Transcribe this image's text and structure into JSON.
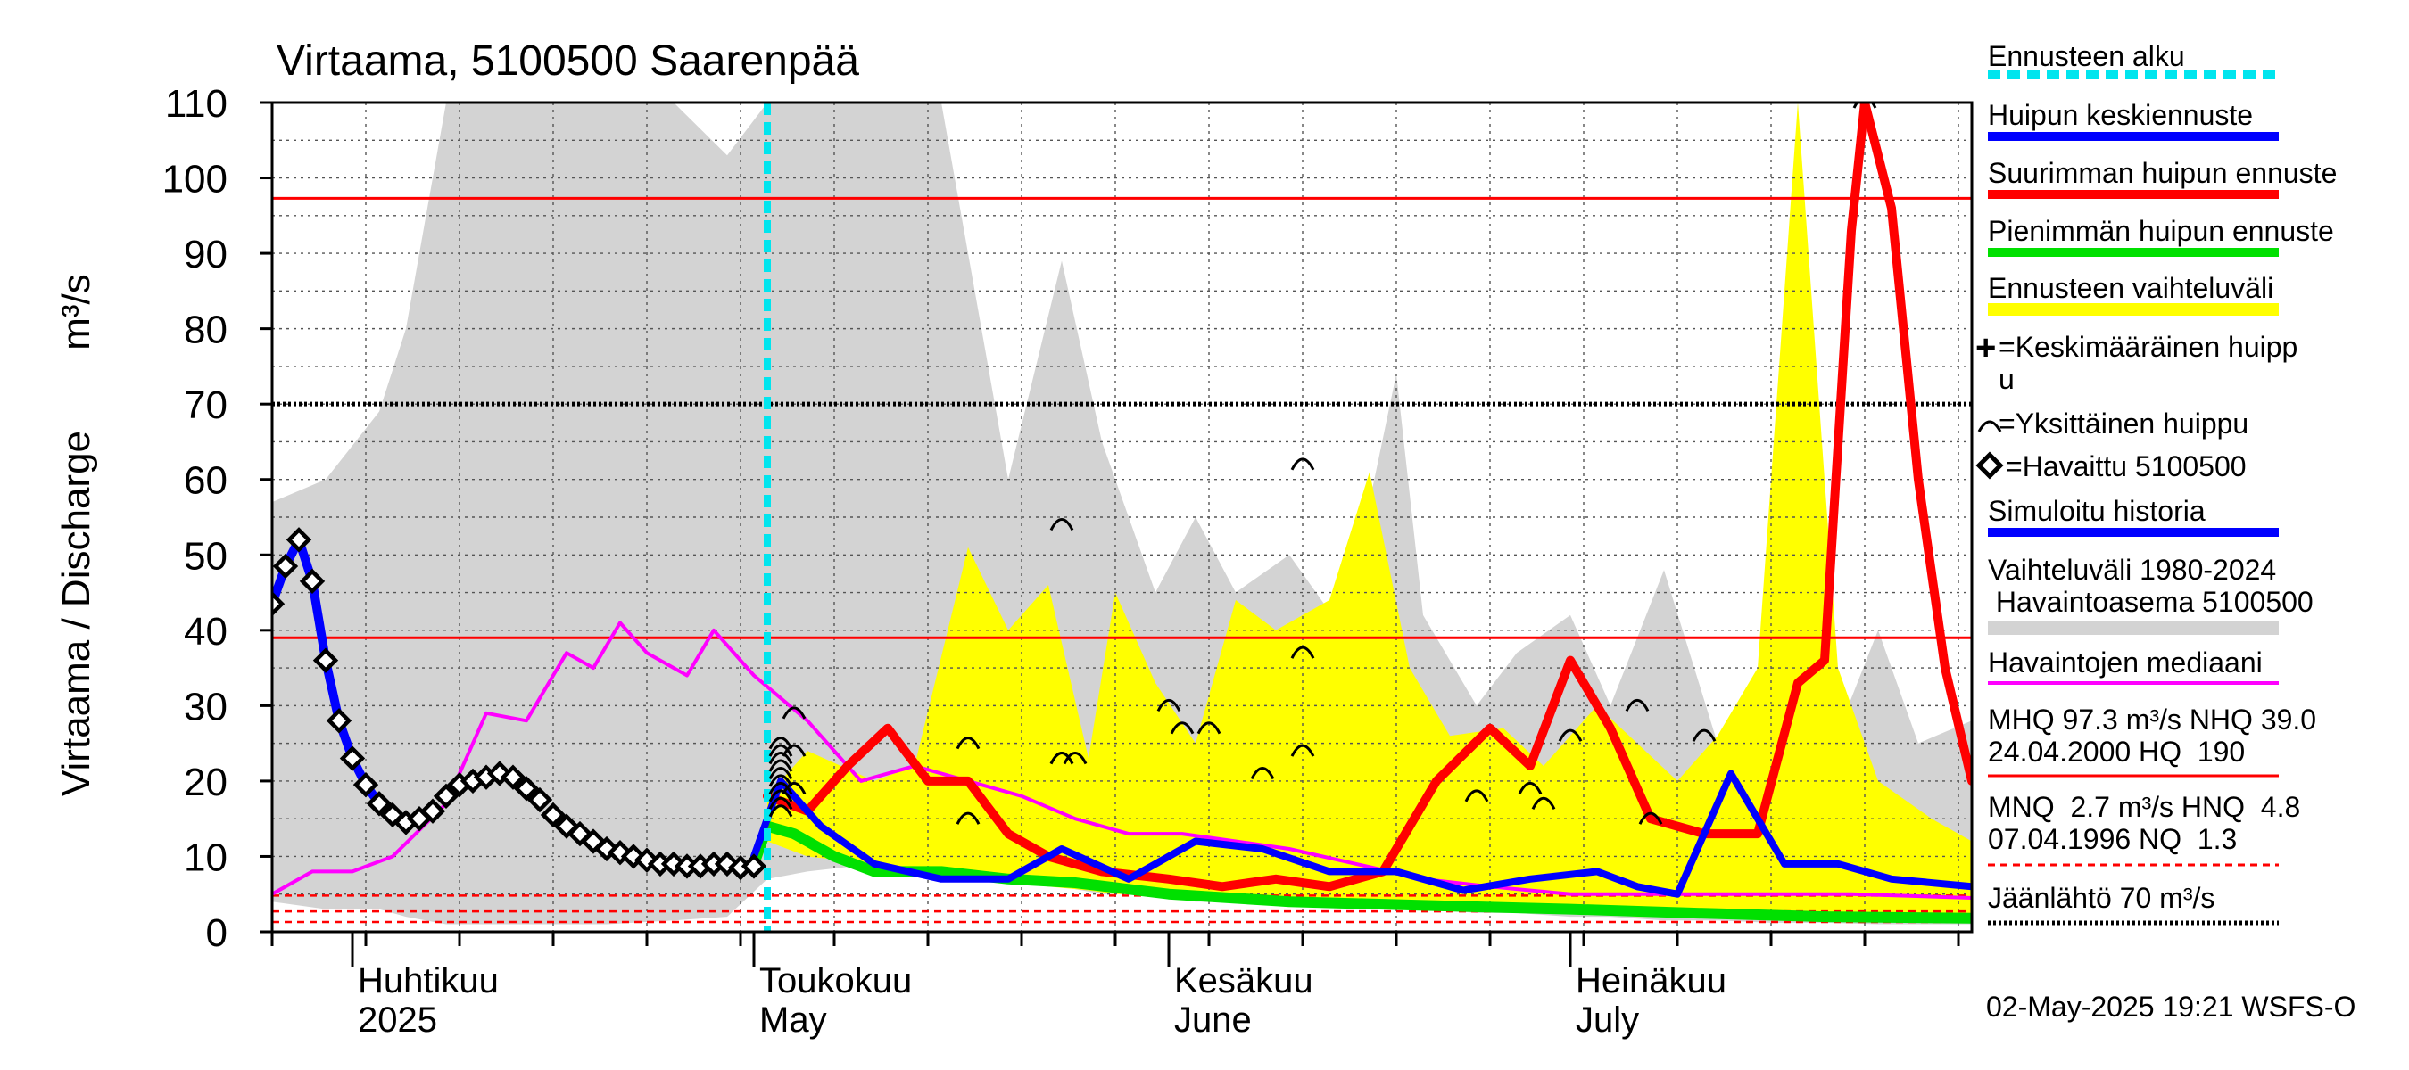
{
  "chart_data": {
    "type": "area",
    "title": "Virtaama, 5100500 Saarenpää",
    "ylabel": "Virtaama / Discharge",
    "yunit": "m³/s",
    "ylim": [
      0,
      110
    ],
    "yticks": [
      0,
      10,
      20,
      30,
      40,
      50,
      60,
      70,
      80,
      90,
      100,
      110
    ],
    "xlim": [
      "2025-03-26",
      "2025-07-31"
    ],
    "month_labels": [
      {
        "fi": "Huhtikuu",
        "en": "2025",
        "date": "2025-04-01"
      },
      {
        "fi": "Toukokuu",
        "en": "May",
        "date": "2025-05-01"
      },
      {
        "fi": "Kesäkuu",
        "en": "June",
        "date": "2025-06-01"
      },
      {
        "fi": "Heinäkuu",
        "en": "July",
        "date": "2025-07-01"
      }
    ],
    "forecast_start": "2025-05-02",
    "reference_lines": {
      "MHQ": 97.3,
      "NHQ": 39.0,
      "MNQ": 2.7,
      "HNQ": 4.8,
      "NQ": 1.3,
      "ice_breakup": 70
    },
    "series": [
      {
        "name": "Vaihteluväli 1980-2024 Havaintoasema 5100500",
        "kind": "band",
        "color": "#d3d3d3",
        "x": [
          "2025-03-26",
          "2025-03-30",
          "2025-04-03",
          "2025-04-05",
          "2025-04-08",
          "2025-04-12",
          "2025-04-16",
          "2025-04-20",
          "2025-04-25",
          "2025-04-29",
          "2025-05-02",
          "2025-05-05",
          "2025-05-10",
          "2025-05-15",
          "2025-05-20",
          "2025-05-24",
          "2025-05-27",
          "2025-05-31",
          "2025-06-03",
          "2025-06-06",
          "2025-06-10",
          "2025-06-14",
          "2025-06-18",
          "2025-06-20",
          "2025-06-24",
          "2025-06-27",
          "2025-07-01",
          "2025-07-04",
          "2025-07-08",
          "2025-07-12",
          "2025-07-16",
          "2025-07-20",
          "2025-07-24",
          "2025-07-27",
          "2025-07-31"
        ],
        "upper": [
          57,
          60,
          69,
          80,
          110,
          110,
          110,
          110,
          110,
          103,
          110,
          110,
          110,
          110,
          60,
          89,
          65,
          45,
          55,
          45,
          50,
          40,
          74,
          42,
          30,
          37,
          42,
          30,
          48,
          25,
          36,
          22,
          40,
          25,
          28
        ],
        "lower": [
          4,
          3,
          3,
          2,
          1,
          1,
          1,
          1,
          1.5,
          2,
          7,
          8,
          9,
          8,
          7,
          6,
          5,
          5,
          4,
          4,
          3.5,
          3.5,
          3,
          3,
          2.5,
          2.5,
          2,
          2,
          1.5,
          1.5,
          1.2,
          1.2,
          1,
          1,
          1
        ]
      },
      {
        "name": "Ennusteen vaihteluväli",
        "kind": "band",
        "color": "#ffff00",
        "x": [
          "2025-05-02",
          "2025-05-05",
          "2025-05-10",
          "2025-05-13",
          "2025-05-17",
          "2025-05-20",
          "2025-05-23",
          "2025-05-26",
          "2025-05-28",
          "2025-05-31",
          "2025-06-03",
          "2025-06-06",
          "2025-06-09",
          "2025-06-13",
          "2025-06-16",
          "2025-06-19",
          "2025-06-22",
          "2025-06-26",
          "2025-06-29",
          "2025-07-03",
          "2025-07-06",
          "2025-07-09",
          "2025-07-12",
          "2025-07-15",
          "2025-07-18",
          "2025-07-21",
          "2025-07-24",
          "2025-07-28",
          "2025-07-31"
        ],
        "upper": [
          18,
          24,
          20,
          22,
          51,
          40,
          46,
          23,
          45,
          33,
          25,
          44,
          40,
          44,
          61,
          35,
          26,
          27,
          22,
          30,
          25,
          20,
          26,
          35,
          110,
          35,
          20,
          15,
          12
        ],
        "lower": [
          12,
          10,
          9,
          8,
          7,
          6.5,
          6,
          5.5,
          5,
          5,
          4.5,
          4.5,
          4,
          4,
          3.5,
          3.5,
          3,
          3,
          2.5,
          2.5,
          2,
          2,
          2,
          2,
          2,
          2,
          1.8,
          1.5,
          1.5
        ]
      },
      {
        "name": "Havaintojen mediaani",
        "color": "#ff00ff",
        "x": [
          "2025-03-26",
          "2025-03-29",
          "2025-04-01",
          "2025-04-04",
          "2025-04-08",
          "2025-04-11",
          "2025-04-14",
          "2025-04-17",
          "2025-04-19",
          "2025-04-21",
          "2025-04-23",
          "2025-04-26",
          "2025-04-28",
          "2025-05-01",
          "2025-05-05",
          "2025-05-09",
          "2025-05-13",
          "2025-05-17",
          "2025-05-21",
          "2025-05-25",
          "2025-05-29",
          "2025-06-02",
          "2025-06-06",
          "2025-06-10",
          "2025-06-15",
          "2025-06-20",
          "2025-06-25",
          "2025-07-01",
          "2025-07-08",
          "2025-07-15",
          "2025-07-22",
          "2025-07-31"
        ],
        "y": [
          5,
          8,
          8,
          10,
          17,
          29,
          28,
          37,
          35,
          41,
          37,
          34,
          40,
          34,
          28,
          20,
          22,
          20,
          18,
          15,
          13,
          13,
          12,
          11,
          9,
          7,
          6,
          5,
          5,
          5,
          5,
          4.5
        ]
      },
      {
        "name": "Pienimmän huipun ennuste",
        "color": "#00e000",
        "x": [
          "2025-05-01",
          "2025-05-02",
          "2025-05-04",
          "2025-05-07",
          "2025-05-10",
          "2025-05-15",
          "2025-05-20",
          "2025-05-25",
          "2025-06-01",
          "2025-06-10",
          "2025-06-20",
          "2025-07-01",
          "2025-07-10",
          "2025-07-20",
          "2025-07-31"
        ],
        "y": [
          9,
          14,
          13,
          10,
          8,
          8,
          7,
          6.5,
          5,
          4,
          3.5,
          3,
          2.5,
          2,
          1.8
        ]
      },
      {
        "name": "Suurimman huipun ennuste",
        "color": "#ff0000",
        "x": [
          "2025-05-02",
          "2025-05-05",
          "2025-05-08",
          "2025-05-11",
          "2025-05-14",
          "2025-05-17",
          "2025-05-20",
          "2025-05-23",
          "2025-05-27",
          "2025-06-01",
          "2025-06-05",
          "2025-06-09",
          "2025-06-13",
          "2025-06-17",
          "2025-06-21",
          "2025-06-25",
          "2025-06-28",
          "2025-07-01",
          "2025-07-04",
          "2025-07-07",
          "2025-07-11",
          "2025-07-15",
          "2025-07-18",
          "2025-07-20",
          "2025-07-22",
          "2025-07-23",
          "2025-07-25",
          "2025-07-27",
          "2025-07-29",
          "2025-07-31"
        ],
        "y": [
          18,
          16,
          22,
          27,
          20,
          20,
          13,
          10,
          8,
          7,
          6,
          7,
          6,
          8,
          20,
          27,
          22,
          36,
          27,
          15,
          13,
          13,
          33,
          36,
          93,
          110,
          96,
          60,
          35,
          20
        ]
      },
      {
        "name": "Huipun keskiennuste",
        "color": "#0000ff",
        "x": [
          "2025-05-01",
          "2025-05-03",
          "2025-05-06",
          "2025-05-10",
          "2025-05-15",
          "2025-05-20",
          "2025-05-24",
          "2025-05-29",
          "2025-06-03",
          "2025-06-08",
          "2025-06-13",
          "2025-06-18",
          "2025-06-23",
          "2025-06-28",
          "2025-07-03",
          "2025-07-06",
          "2025-07-09",
          "2025-07-13",
          "2025-07-17",
          "2025-07-21",
          "2025-07-25",
          "2025-07-31"
        ],
        "y": [
          10,
          20,
          14,
          9,
          7,
          7,
          11,
          7,
          12,
          11,
          8,
          8,
          5.5,
          7,
          8,
          6,
          5,
          21,
          9,
          9,
          7,
          6
        ]
      },
      {
        "name": "Simuloitu historia",
        "color": "#0000ff",
        "x": [
          "2025-03-26",
          "2025-03-27",
          "2025-03-28",
          "2025-03-29",
          "2025-03-30",
          "2025-03-31",
          "2025-04-01",
          "2025-04-02",
          "2025-04-03",
          "2025-04-04"
        ],
        "y": [
          43.5,
          48.5,
          52,
          46.5,
          36,
          28,
          23,
          19.5,
          17,
          15
        ]
      },
      {
        "name": "Havaittu 5100500",
        "kind": "points",
        "color": "#000000",
        "x": [
          "2025-03-26",
          "2025-03-27",
          "2025-03-28",
          "2025-03-29",
          "2025-03-30",
          "2025-03-31",
          "2025-04-01",
          "2025-04-02",
          "2025-04-03",
          "2025-04-04",
          "2025-04-05",
          "2025-04-06",
          "2025-04-07",
          "2025-04-08",
          "2025-04-09",
          "2025-04-10",
          "2025-04-11",
          "2025-04-12",
          "2025-04-13",
          "2025-04-14",
          "2025-04-15",
          "2025-04-16",
          "2025-04-17",
          "2025-04-18",
          "2025-04-19",
          "2025-04-20",
          "2025-04-21",
          "2025-04-22",
          "2025-04-23",
          "2025-04-24",
          "2025-04-25",
          "2025-04-26",
          "2025-04-27",
          "2025-04-28",
          "2025-04-29",
          "2025-04-30",
          "2025-05-01"
        ],
        "y": [
          43.5,
          48.5,
          52,
          46.5,
          36,
          28,
          23,
          19.5,
          17,
          15.5,
          14.5,
          15,
          16,
          18,
          19.5,
          20,
          20.5,
          21,
          20.5,
          19,
          17.5,
          15.5,
          14,
          13,
          12,
          11,
          10.5,
          10,
          9.5,
          9,
          9,
          8.7,
          8.7,
          9,
          9,
          8.5,
          8.7
        ]
      }
    ],
    "individual_peaks": [
      {
        "x": "2025-05-03",
        "y": [
          16,
          17,
          18,
          19,
          20,
          21,
          22,
          23,
          24,
          25
        ]
      },
      {
        "x": "2025-05-04",
        "y": [
          19,
          24,
          29
        ]
      },
      {
        "x": "2025-05-17",
        "y": [
          15,
          25
        ]
      },
      {
        "x": "2025-05-24",
        "y": [
          23,
          23,
          54
        ]
      },
      {
        "x": "2025-05-25",
        "y": [
          23
        ]
      },
      {
        "x": "2025-06-01",
        "y": [
          30
        ]
      },
      {
        "x": "2025-06-02",
        "y": [
          27
        ]
      },
      {
        "x": "2025-06-04",
        "y": [
          27
        ]
      },
      {
        "x": "2025-06-08",
        "y": [
          21
        ]
      },
      {
        "x": "2025-06-11",
        "y": [
          24,
          37,
          62
        ]
      },
      {
        "x": "2025-06-24",
        "y": [
          18
        ]
      },
      {
        "x": "2025-06-28",
        "y": [
          19
        ]
      },
      {
        "x": "2025-06-29",
        "y": [
          17
        ]
      },
      {
        "x": "2025-07-01",
        "y": [
          26
        ]
      },
      {
        "x": "2025-07-06",
        "y": [
          30
        ]
      },
      {
        "x": "2025-07-07",
        "y": [
          15
        ]
      },
      {
        "x": "2025-07-11",
        "y": [
          26
        ]
      },
      {
        "x": "2025-07-23",
        "y": [
          110
        ]
      }
    ]
  },
  "legend": {
    "forecast_start": "Ennusteen alku",
    "mean_peak": "Huipun keskiennuste",
    "max_peak": "Suurimman huipun ennuste",
    "min_peak": "Pienimmän huipun ennuste",
    "forecast_range": "Ennusteen vaihteluväli",
    "avg_peak_line1": "=Keskimääräinen huipp",
    "avg_peak_line2": "u",
    "single_peak": "=Yksittäinen huippu",
    "observed": "=Havaittu 5100500",
    "simulated": "Simuloitu historia",
    "range_line1": "Vaihteluväli 1980-2024",
    "range_line2": " Havaintoasema 5100500",
    "median": "Havaintojen mediaani",
    "stats1_line1": "MHQ 97.3 m³/s NHQ 39.0",
    "stats1_line2": "24.04.2000 HQ  190",
    "stats2_line1": "MNQ  2.7 m³/s HNQ  4.8",
    "stats2_line2": "07.04.1996 NQ  1.3",
    "ice": "Jäänlähtö 70 m³/s"
  },
  "footer": "02-May-2025 19:21 WSFS-O",
  "colors": {
    "history_band": "#d3d3d3",
    "forecast_band": "#ffff00",
    "median": "#ff00ff",
    "max_peak": "#ff0000",
    "min_peak": "#00e000",
    "mean_peak": "#0000ff",
    "forecast_start": "#00e5ee",
    "reference": "#ff0000",
    "ice_line": "#000000"
  }
}
